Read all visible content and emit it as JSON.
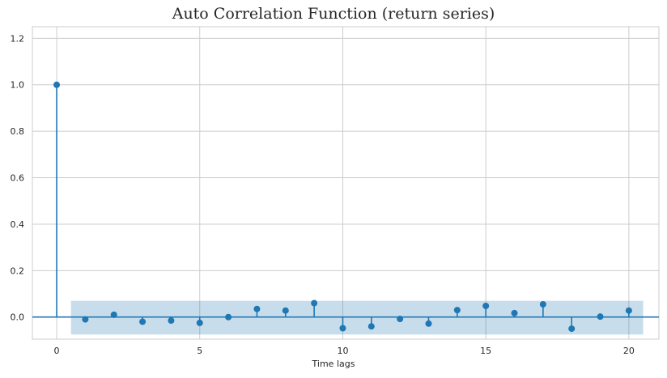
{
  "chart_data": {
    "type": "stem",
    "title": "Auto Correlation Function (return series)",
    "xlabel": "Time lags",
    "ylabel": "",
    "xlim": [
      -0.85,
      21.05
    ],
    "ylim": [
      -0.095,
      1.25
    ],
    "xticks": [
      0,
      5,
      10,
      15,
      20
    ],
    "yticks": [
      0.0,
      0.2,
      0.4,
      0.6,
      0.8,
      1.0,
      1.2
    ],
    "grid": true,
    "x": [
      0,
      1,
      2,
      3,
      4,
      5,
      6,
      7,
      8,
      9,
      10,
      11,
      12,
      13,
      14,
      15,
      16,
      17,
      18,
      19,
      20
    ],
    "values": [
      1.0,
      -0.01,
      0.01,
      -0.02,
      -0.015,
      -0.025,
      0.0,
      0.035,
      0.028,
      0.06,
      -0.048,
      -0.04,
      -0.008,
      -0.028,
      0.03,
      0.048,
      0.017,
      0.055,
      -0.05,
      0.002,
      0.028
    ],
    "confidence_band": {
      "x_range": [
        0.5,
        20.5
      ],
      "lower": -0.075,
      "upper": 0.07
    },
    "colors": {
      "stem": "#1f77b4",
      "band": "#1f77b4",
      "grid": "#cccccc",
      "spine": "#cccccc",
      "text": "#262626"
    }
  }
}
